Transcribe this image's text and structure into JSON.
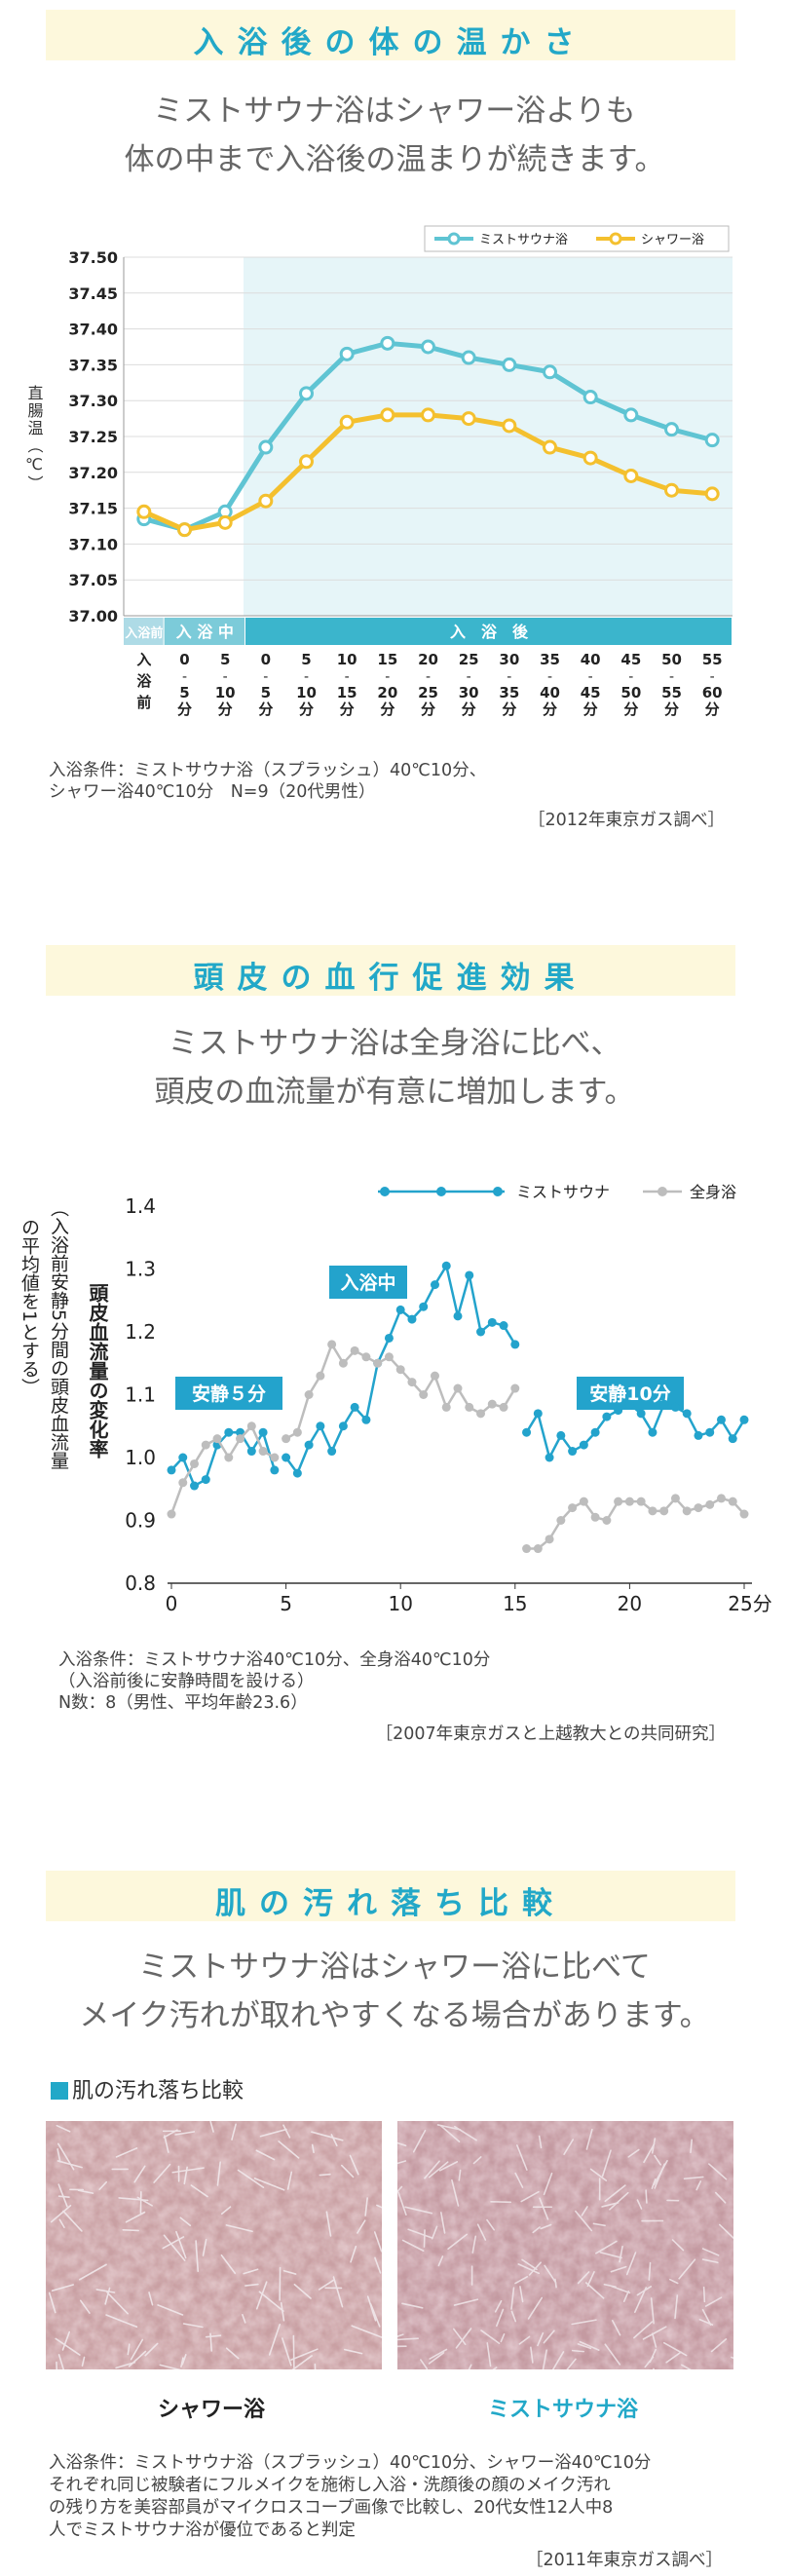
{
  "section1": {
    "title": "入浴後の体の温かさ",
    "lead": [
      "ミストサウナ浴はシャワー浴よりも",
      "体の中まで入浴後の温まりが続きます。"
    ],
    "note": [
      "入浴条件：ミストサウナ浴（スプラッシュ）40℃10分、",
      "シャワー浴40℃10分　N=9（20代男性）"
    ],
    "source": "［2012年東京ガス調べ］"
  },
  "section2": {
    "title": "頭皮の血行促進効果",
    "lead": [
      "ミストサウナ浴は全身浴に比べ、",
      "頭皮の血流量が有意に増加します。"
    ],
    "note": [
      "入浴条件：ミストサウナ浴40℃10分、全身浴40℃10分",
      "（入浴前後に安静時間を設ける）",
      "N数：8（男性、平均年齢23.6）"
    ],
    "source": "［2007年東京ガスと上越教大との共同研究］"
  },
  "section3": {
    "title": "肌の汚れ落ち比較",
    "lead": [
      "ミストサウナ浴はシャワー浴に比べて",
      "メイク汚れが取れやすくなる場合があります。"
    ],
    "subhead": "肌の汚れ落ち比較",
    "photo_left_label": "シャワー浴",
    "photo_right_label": "ミストサウナ浴",
    "note": [
      "入浴条件：ミストサウナ浴（スプラッシュ）40℃10分、シャワー浴40℃10分",
      "それぞれ同じ被験者にフルメイクを施術し入浴・洗顔後の顔のメイク汚れ",
      "の残り方を美容部員がマイクロスコープ画像で比較し、20代女性12人中8",
      "人でミストサウナ浴が優位であると判定"
    ],
    "source": "［2011年東京ガス調べ］"
  },
  "colors": {
    "mist": "#5fc4d3",
    "shower": "#f4c02e",
    "blue": "#23a3cc",
    "gray": "#bdbdbd",
    "accent": "#22a8c8"
  },
  "chart_data": [
    {
      "type": "line",
      "title": "入浴後の体の温かさ",
      "ylabel": "直腸温（℃）",
      "ylim": [
        37.0,
        37.5
      ],
      "yticks": [
        "37.50",
        "37.45",
        "37.40",
        "37.35",
        "37.30",
        "37.25",
        "37.20",
        "37.15",
        "37.10",
        "37.05",
        "37.00"
      ],
      "categories": [
        "入浴前",
        "0-5分",
        "5-10分",
        "0-5分",
        "5-10分",
        "10-15分",
        "15-20分",
        "20-25分",
        "25-30分",
        "30-35分",
        "35-40分",
        "40-45分",
        "45-50分",
        "50-55分",
        "55-60分"
      ],
      "x_tick_text": [
        [
          "入",
          "浴",
          "前"
        ],
        [
          "0",
          "-",
          "5",
          "分"
        ],
        [
          "5",
          "-",
          "10",
          "分"
        ],
        [
          "0",
          "-",
          "5",
          "分"
        ],
        [
          "5",
          "-",
          "10",
          "分"
        ],
        [
          "10",
          "-",
          "15",
          "分"
        ],
        [
          "15",
          "-",
          "20",
          "分"
        ],
        [
          "20",
          "-",
          "25",
          "分"
        ],
        [
          "25",
          "-",
          "30",
          "分"
        ],
        [
          "30",
          "-",
          "35",
          "分"
        ],
        [
          "35",
          "-",
          "40",
          "分"
        ],
        [
          "40",
          "-",
          "45",
          "分"
        ],
        [
          "45",
          "-",
          "50",
          "分"
        ],
        [
          "50",
          "-",
          "55",
          "分"
        ],
        [
          "55",
          "-",
          "60",
          "分"
        ]
      ],
      "phases": [
        "入浴前",
        "入 浴 中",
        "入　浴　後"
      ],
      "series": [
        {
          "name": "ミストサウナ浴",
          "values": [
            37.135,
            37.12,
            37.145,
            37.235,
            37.31,
            37.365,
            37.38,
            37.375,
            37.36,
            37.35,
            37.34,
            37.305,
            37.28,
            37.26,
            37.245
          ]
        },
        {
          "name": "シャワー浴",
          "values": [
            37.145,
            37.12,
            37.13,
            37.16,
            37.215,
            37.27,
            37.28,
            37.28,
            37.275,
            37.265,
            37.235,
            37.22,
            37.195,
            37.175,
            37.17
          ]
        }
      ]
    },
    {
      "type": "line",
      "title": "頭皮の血行促進効果",
      "ylabel": "頭皮血流量の変化率",
      "ylabel_note": "（入浴前安静5分間の頭皮血流量の平均値を1とする）",
      "ylim": [
        0.8,
        1.4
      ],
      "xlim": [
        0,
        25
      ],
      "yticks": [
        "1.4",
        "1.3",
        "1.2",
        "1.1",
        "1.0",
        "0.9",
        "0.8"
      ],
      "xticks": [
        "0",
        "5",
        "10",
        "15",
        "20",
        "25分"
      ],
      "phase_labels": [
        "安静５分",
        "入浴中",
        "安静10分"
      ],
      "series": [
        {
          "name": "ミストサウナ",
          "segments": [
            {
              "x": [
                0,
                0.5,
                1,
                1.5,
                2,
                2.5,
                3,
                3.5,
                4,
                4.5
              ],
              "y": [
                0.98,
                1.0,
                0.955,
                0.965,
                1.02,
                1.04,
                1.04,
                1.01,
                1.04,
                0.98
              ]
            },
            {
              "x": [
                5,
                5.5,
                6,
                6.5,
                7,
                7.5,
                8,
                8.5,
                9,
                9.5,
                10,
                10.5,
                11,
                11.5,
                12,
                12.5,
                13,
                13.5,
                14,
                14.5,
                15
              ],
              "y": [
                1.0,
                0.975,
                1.02,
                1.05,
                1.01,
                1.05,
                1.08,
                1.06,
                1.15,
                1.19,
                1.235,
                1.22,
                1.24,
                1.275,
                1.305,
                1.225,
                1.29,
                1.2,
                1.215,
                1.21,
                1.18
              ]
            },
            {
              "x": [
                15.5,
                16,
                16.5,
                17,
                17.5,
                18,
                18.5,
                19,
                19.5,
                20,
                20.5,
                21,
                21.5,
                22,
                22.5,
                23,
                23.5,
                24,
                24.5,
                25
              ],
              "y": [
                1.04,
                1.07,
                1.0,
                1.035,
                1.01,
                1.02,
                1.04,
                1.065,
                1.075,
                1.085,
                1.07,
                1.04,
                1.085,
                1.08,
                1.07,
                1.035,
                1.04,
                1.06,
                1.03,
                1.06
              ]
            }
          ]
        },
        {
          "name": "全身浴",
          "segments": [
            {
              "x": [
                0,
                0.5,
                1,
                1.5,
                2,
                2.5,
                3,
                3.5,
                4,
                4.5
              ],
              "y": [
                0.91,
                0.96,
                0.99,
                1.02,
                1.03,
                1.0,
                1.03,
                1.05,
                1.01,
                1.0
              ]
            },
            {
              "x": [
                5,
                5.5,
                6,
                6.5,
                7,
                7.5,
                8,
                8.5,
                9,
                9.5,
                10,
                10.5,
                11,
                11.5,
                12,
                12.5,
                13,
                13.5,
                14,
                14.5,
                15
              ],
              "y": [
                1.03,
                1.04,
                1.1,
                1.13,
                1.18,
                1.15,
                1.17,
                1.16,
                1.15,
                1.16,
                1.14,
                1.12,
                1.1,
                1.13,
                1.08,
                1.11,
                1.08,
                1.07,
                1.085,
                1.08,
                1.11
              ]
            },
            {
              "x": [
                15.5,
                16,
                16.5,
                17,
                17.5,
                18,
                18.5,
                19,
                19.5,
                20,
                20.5,
                21,
                21.5,
                22,
                22.5,
                23,
                23.5,
                24,
                24.5,
                25
              ],
              "y": [
                0.855,
                0.855,
                0.87,
                0.9,
                0.92,
                0.93,
                0.905,
                0.9,
                0.93,
                0.93,
                0.93,
                0.915,
                0.915,
                0.935,
                0.915,
                0.92,
                0.925,
                0.935,
                0.93,
                0.91
              ]
            }
          ]
        }
      ]
    }
  ]
}
